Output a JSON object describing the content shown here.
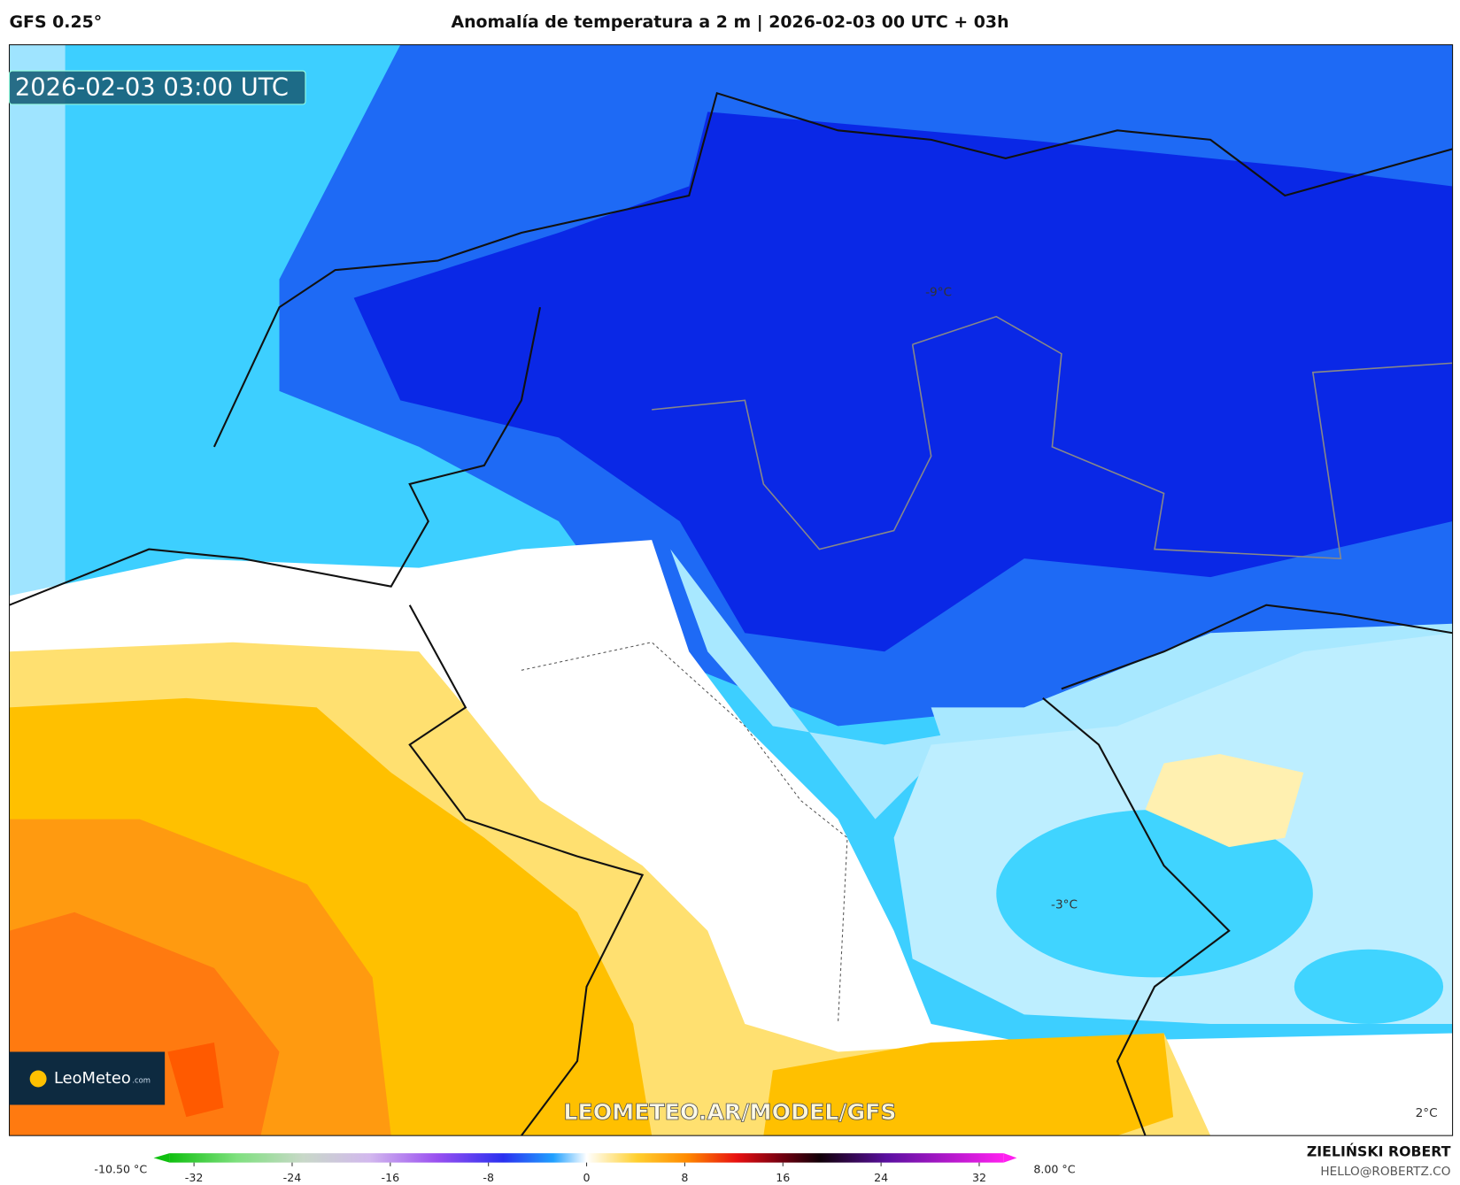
{
  "header": {
    "model": "GFS 0.25°",
    "title": "Anomalía de temperatura a 2 m | 2026-02-03 00 UTC + 03h"
  },
  "map": {
    "valid_time": "2026-02-03 03:00 UTC",
    "contour_labels": [
      "-9°C",
      "-3°C",
      "2°C"
    ],
    "watermark": "LEOMETEO.AR/MODEL/GFS",
    "logo": {
      "name": "LeoMeteo",
      "suffix": ".com"
    }
  },
  "colorbar": {
    "range": [
      -34,
      34
    ],
    "ticks": [
      -32,
      -24,
      -16,
      -8,
      0,
      8,
      16,
      24,
      32
    ],
    "min_label": "-10.50 °C",
    "max_label": "8.00 °C"
  },
  "footer": {
    "author": "ZIELIŃSKI ROBERT",
    "contact": "HELLO@ROBERTZ.CO"
  }
}
